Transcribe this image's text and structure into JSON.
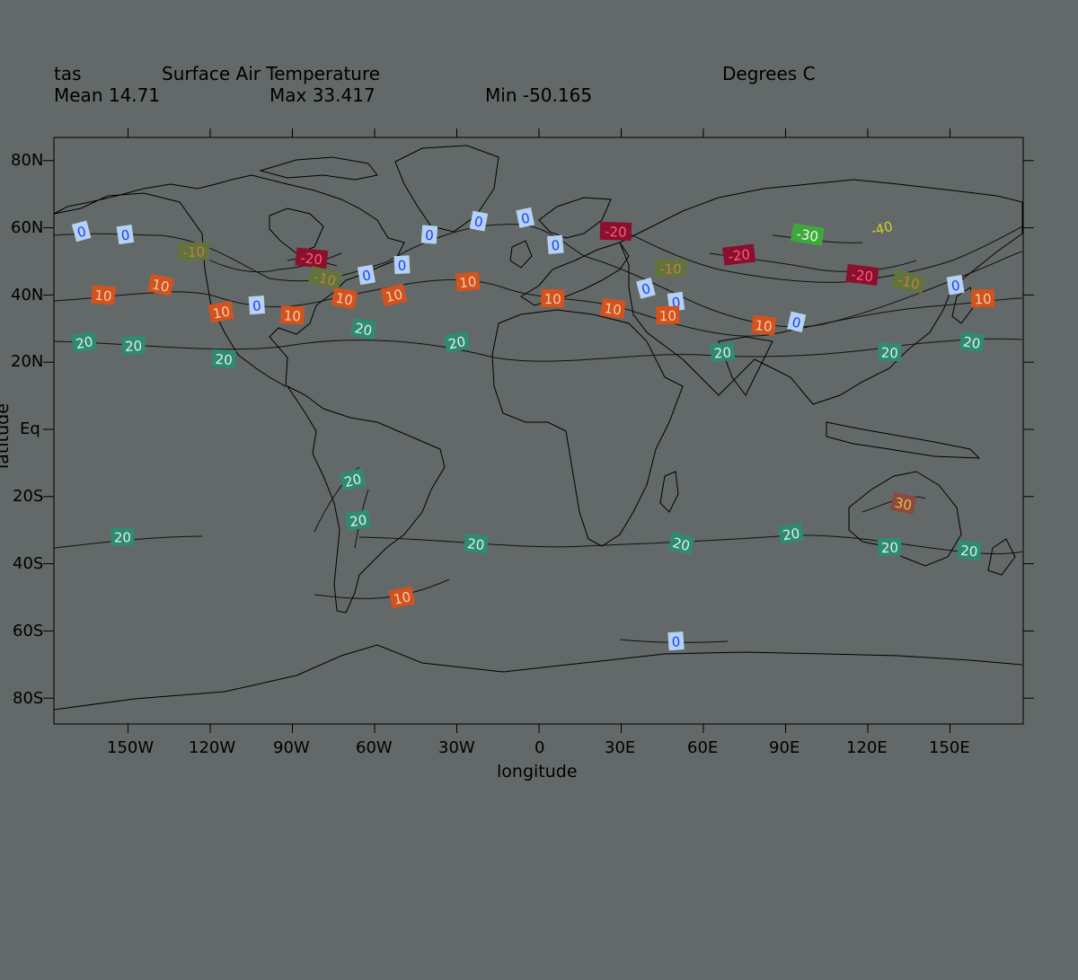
{
  "header": {
    "var_name": "tas",
    "long_name": "Surface Air Temperature",
    "units": "Degrees C",
    "mean": "Mean 14.71",
    "max": "Max 33.417",
    "min": "Min -50.165"
  },
  "axes": {
    "xlabel": "longitude",
    "ylabel": "latitude",
    "xticks": [
      "150W",
      "120W",
      "90W",
      "60W",
      "30W",
      "0",
      "30E",
      "60E",
      "90E",
      "120E",
      "150E"
    ],
    "yticks": [
      "80N",
      "60N",
      "40N",
      "20N",
      "Eq",
      "20S",
      "40S",
      "60S",
      "80S"
    ]
  },
  "colors": {
    "background": "#636968",
    "coastline": "#000000",
    "contour": "#111111",
    "label_0": "#b5d2f2",
    "label_10": "#d4521e",
    "label_20": "#2f8b70",
    "label_neg10": "#62733e",
    "label_neg20": "#8a1030",
    "label_neg30": "#3da83a",
    "label_30": "#8a4a40"
  },
  "contour_labels": [
    {
      "text": "0",
      "lon": -167,
      "lat": 59
    },
    {
      "text": "0",
      "lon": -151,
      "lat": 58
    },
    {
      "text": "-10",
      "lon": -126,
      "lat": 53
    },
    {
      "text": "-20",
      "lon": -83,
      "lat": 51
    },
    {
      "text": "-10",
      "lon": -78,
      "lat": 45
    },
    {
      "text": "0",
      "lon": -63,
      "lat": 46
    },
    {
      "text": "0",
      "lon": -50,
      "lat": 49
    },
    {
      "text": "0",
      "lon": -40,
      "lat": 58
    },
    {
      "text": "0",
      "lon": -22,
      "lat": 62
    },
    {
      "text": "0",
      "lon": -5,
      "lat": 63
    },
    {
      "text": "0",
      "lon": 6,
      "lat": 55
    },
    {
      "text": "-20",
      "lon": 28,
      "lat": 59
    },
    {
      "text": "-30",
      "lon": 98,
      "lat": 58
    },
    {
      "text": "-40",
      "lon": 125,
      "lat": 60
    },
    {
      "text": "-20",
      "lon": 73,
      "lat": 52
    },
    {
      "text": "-10",
      "lon": 48,
      "lat": 48
    },
    {
      "text": "-20",
      "lon": 118,
      "lat": 46
    },
    {
      "text": "-10",
      "lon": 135,
      "lat": 44
    },
    {
      "text": "0",
      "lon": 152,
      "lat": 43
    },
    {
      "text": "10",
      "lon": 162,
      "lat": 39
    },
    {
      "text": "10",
      "lon": -159,
      "lat": 40
    },
    {
      "text": "10",
      "lon": -138,
      "lat": 43
    },
    {
      "text": "10",
      "lon": -116,
      "lat": 35
    },
    {
      "text": "0",
      "lon": -103,
      "lat": 37
    },
    {
      "text": "10",
      "lon": -90,
      "lat": 34
    },
    {
      "text": "10",
      "lon": -71,
      "lat": 39
    },
    {
      "text": "10",
      "lon": -53,
      "lat": 40
    },
    {
      "text": "10",
      "lon": -26,
      "lat": 44
    },
    {
      "text": "10",
      "lon": 5,
      "lat": 39
    },
    {
      "text": "10",
      "lon": 27,
      "lat": 36
    },
    {
      "text": "0",
      "lon": 39,
      "lat": 42
    },
    {
      "text": "0",
      "lon": 50,
      "lat": 38
    },
    {
      "text": "10",
      "lon": 47,
      "lat": 34
    },
    {
      "text": "10",
      "lon": 82,
      "lat": 31
    },
    {
      "text": "0",
      "lon": 94,
      "lat": 32
    },
    {
      "text": "20",
      "lon": -166,
      "lat": 26
    },
    {
      "text": "20",
      "lon": -148,
      "lat": 25
    },
    {
      "text": "20",
      "lon": -115,
      "lat": 21
    },
    {
      "text": "20",
      "lon": -64,
      "lat": 30
    },
    {
      "text": "20",
      "lon": -30,
      "lat": 26
    },
    {
      "text": "20",
      "lon": 67,
      "lat": 23
    },
    {
      "text": "20",
      "lon": 128,
      "lat": 23
    },
    {
      "text": "20",
      "lon": 158,
      "lat": 26
    },
    {
      "text": "20",
      "lon": -68,
      "lat": -15
    },
    {
      "text": "20",
      "lon": -66,
      "lat": -27
    },
    {
      "text": "20",
      "lon": -152,
      "lat": -32
    },
    {
      "text": "20",
      "lon": -23,
      "lat": -34
    },
    {
      "text": "20",
      "lon": 52,
      "lat": -34
    },
    {
      "text": "20",
      "lon": 92,
      "lat": -31
    },
    {
      "text": "20",
      "lon": 128,
      "lat": -35
    },
    {
      "text": "20",
      "lon": 157,
      "lat": -36
    },
    {
      "text": "30",
      "lon": 133,
      "lat": -22
    },
    {
      "text": "10",
      "lon": -50,
      "lat": -50
    },
    {
      "text": "0",
      "lon": 50,
      "lat": -63
    }
  ]
}
